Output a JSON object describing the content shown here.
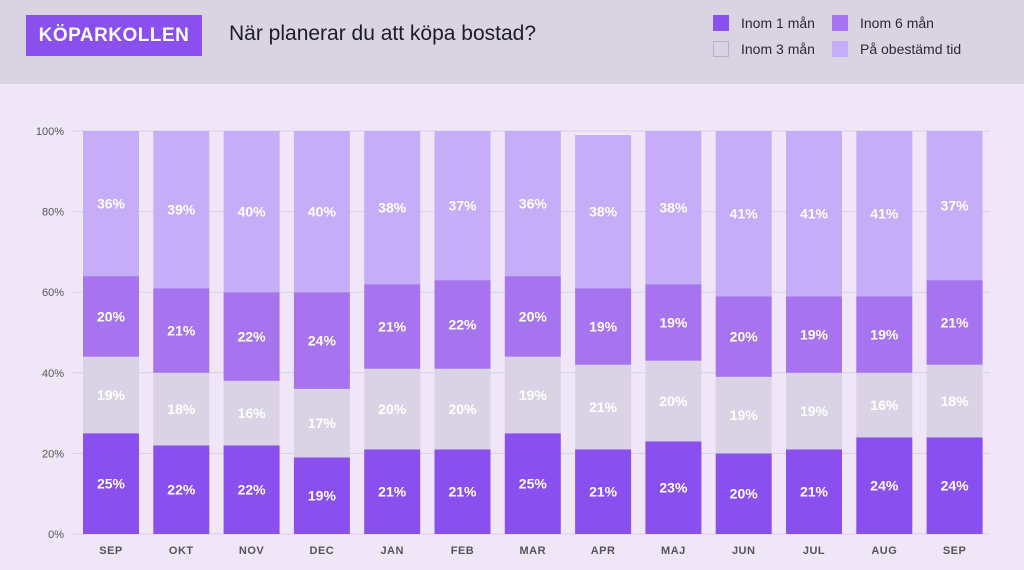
{
  "brand": "KÖPARKOLLEN",
  "title": "När planerar du att köpa bostad?",
  "chart_data": {
    "type": "bar",
    "stacked": true,
    "categories": [
      "SEP",
      "OKT",
      "NOV",
      "DEC",
      "JAN",
      "FEB",
      "MAR",
      "APR",
      "MAJ",
      "JUN",
      "JUL",
      "AUG",
      "SEP"
    ],
    "series": [
      {
        "name": "Inom 1 mån",
        "color": "#8a4fef",
        "label_color": "#ffffff",
        "values": [
          25,
          22,
          22,
          19,
          21,
          21,
          25,
          21,
          23,
          20,
          21,
          24,
          24
        ]
      },
      {
        "name": "Inom 3 mån",
        "color": "#d9d3e5",
        "label_color": "#ffffff",
        "values": [
          19,
          18,
          16,
          17,
          20,
          20,
          19,
          21,
          20,
          19,
          19,
          16,
          18
        ]
      },
      {
        "name": "Inom 6 mån",
        "color": "#a774f0",
        "label_color": "#ffffff",
        "values": [
          20,
          21,
          22,
          24,
          21,
          22,
          20,
          19,
          19,
          20,
          19,
          19,
          21
        ]
      },
      {
        "name": "På obestämd tid",
        "color": "#c5adf8",
        "label_color": "#ffffff",
        "values": [
          36,
          39,
          40,
          40,
          38,
          37,
          36,
          38,
          38,
          41,
          41,
          41,
          37
        ]
      }
    ],
    "yticks": [
      "0%",
      "20%",
      "40%",
      "60%",
      "80%",
      "100%"
    ],
    "ylim": [
      0,
      100
    ],
    "legend": [
      {
        "name": "Inom 1 mån",
        "color": "#8a4fef"
      },
      {
        "name": "Inom 6 mån",
        "color": "#a774f0"
      },
      {
        "name": "Inom 3 mån",
        "color": "#d9d3e5"
      },
      {
        "name": "På obestämd tid",
        "color": "#c5adf8"
      }
    ],
    "legend_position": "top-right"
  }
}
